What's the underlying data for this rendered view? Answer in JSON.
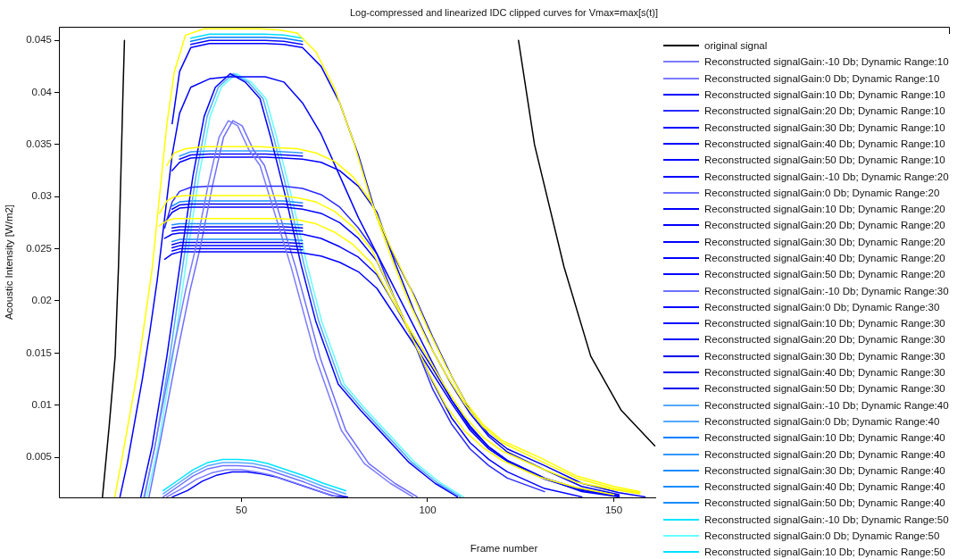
{
  "chart_data": {
    "type": "line",
    "title": "Log-compressed and linearized IDC clipped curves for Vmax=max[s(t)]",
    "xlabel": "Frame number",
    "ylabel": "Acoustic Intensity [W/m2]",
    "xlim": [
      1,
      240
    ],
    "xticks": [
      50,
      100,
      150
    ],
    "ylim": [
      0.00115,
      0.0463
    ],
    "yticks": [
      0.005,
      0.01,
      0.015,
      0.02,
      0.025,
      0.03,
      0.035,
      0.04,
      0.045
    ],
    "grid": false,
    "legend": "right",
    "marker": "none",
    "line_style": "solid",
    "x": [
      17.4,
      19.4,
      21.4,
      23.4,
      25.4,
      27.4,
      29.4,
      31.4,
      33.4,
      36.4,
      41.4,
      46.4,
      51.4,
      56.4,
      61.4,
      66.4,
      71.4,
      76.4,
      81.4,
      86.4,
      91.4,
      96.4,
      101.4,
      106.4,
      111.4,
      116.4,
      121.4,
      131.4,
      141.4,
      151.4,
      158.4
    ],
    "series": [
      {
        "name": "original signal",
        "color": "#000000",
        "x": [
          12.7,
          14.5,
          16.1,
          17,
          18.2,
          18.6,
          70,
          124.4,
          128.7,
          136.6,
          143.8,
          152,
          161
        ],
        "values": [
          0.0012,
          0.008,
          0.0147,
          0.0233,
          0.04,
          0.045,
          null,
          0.045,
          0.035,
          0.0233,
          0.0147,
          0.0095,
          0.0061
        ]
      },
      {
        "color": "#ffff00",
        "x": [
          16,
          18,
          20,
          22,
          24,
          26,
          28,
          30,
          32,
          35,
          40,
          45,
          50,
          55,
          60,
          65,
          70,
          75,
          80,
          85,
          90,
          95,
          100,
          105,
          110,
          115,
          120,
          130,
          140,
          150,
          157
        ],
        "values": [
          0.0012,
          0.005,
          0.009,
          0.013,
          0.018,
          0.023,
          0.03,
          0.037,
          0.042,
          0.0455,
          0.0461,
          0.0461,
          0.0461,
          0.0461,
          0.046,
          0.0457,
          0.0439,
          0.0404,
          0.0354,
          0.0294,
          0.0252,
          0.0215,
          0.0174,
          0.0137,
          0.0104,
          0.0081,
          0.0066,
          0.005,
          0.0032,
          0.0022,
          0.0017
        ]
      },
      {
        "color": "#ffff00",
        "x": [
          30,
          32,
          35,
          40,
          45,
          50,
          55,
          60,
          65,
          70,
          75,
          80,
          85,
          90,
          95,
          100,
          105,
          110,
          115,
          120,
          130,
          140,
          150,
          157
        ],
        "values": [
          0.033,
          0.0342,
          0.0346,
          0.0348,
          0.0348,
          0.0348,
          0.0348,
          0.0347,
          0.0346,
          0.0342,
          0.0334,
          0.0319,
          0.0294,
          0.0244,
          0.0199,
          0.0161,
          0.0129,
          0.0101,
          0.0079,
          0.0064,
          0.0047,
          0.003,
          0.002,
          0.0016
        ]
      },
      {
        "color": "#ffff00",
        "x": [
          28,
          30,
          32,
          35,
          40,
          45,
          50,
          55,
          60,
          65,
          70,
          75,
          80,
          85,
          90,
          95,
          100,
          105,
          110,
          115,
          120,
          130,
          140,
          150
        ],
        "values": [
          0.0284,
          0.0296,
          0.03,
          0.0301,
          0.0301,
          0.0301,
          0.0301,
          0.0301,
          0.0301,
          0.0299,
          0.0295,
          0.0286,
          0.0271,
          0.0249,
          0.0211,
          0.0171,
          0.0133,
          0.0099,
          0.0075,
          0.0059,
          0.0047,
          0.0031,
          0.0021,
          0.0014
        ]
      },
      {
        "color": "#ffff00",
        "x": [
          28,
          30,
          32,
          35,
          40,
          45,
          50,
          55,
          60,
          65,
          70,
          75,
          80,
          85,
          90,
          95,
          100,
          105,
          110,
          115,
          120,
          130,
          140,
          150,
          157
        ],
        "values": [
          0.0272,
          0.0277,
          0.0279,
          0.0279,
          0.0279,
          0.0279,
          0.0279,
          0.0279,
          0.0279,
          0.0278,
          0.0274,
          0.0266,
          0.0254,
          0.0236,
          0.0204,
          0.0174,
          0.0146,
          0.0116,
          0.0089,
          0.0069,
          0.0056,
          0.004,
          0.0026,
          0.0019,
          0.0015
        ]
      },
      {
        "name": "Reconstructed signalGain:-10 Db; Dynamic Range:10",
        "color": "#7b7bff",
        "x": [
          30,
          34,
          38,
          42,
          46,
          50,
          54,
          58,
          63,
          68,
          73,
          76
        ],
        "values": [
          0.0012,
          0.002,
          0.0029,
          0.0035,
          0.0038,
          0.0038,
          0.0036,
          0.0033,
          0.0027,
          0.0021,
          0.0015,
          0.0012
        ]
      },
      {
        "name": "Reconstructed signalGain:0 Db; Dynamic Range:10",
        "color": "#7b7bff",
        "x": [
          24,
          27,
          31.4,
          35,
          37.8,
          41,
          44,
          46.5,
          49,
          52,
          55,
          58,
          63.4,
          70,
          76.8,
          83,
          90,
          96
        ],
        "values": [
          0.0012,
          0.0065,
          0.0147,
          0.021,
          0.0252,
          0.031,
          0.0357,
          0.0373,
          0.0368,
          0.0345,
          0.033,
          0.0295,
          0.0232,
          0.0145,
          0.0076,
          0.0044,
          0.0025,
          0.0012
        ]
      },
      {
        "name": "Reconstructed signalGain:10 Db; Dynamic Range:10",
        "color": "#0000ff",
        "values": [
          0.0012,
          0.0045,
          0.0085,
          0.0125,
          0.017,
          0.022,
          0.028,
          0.034,
          0.038,
          0.0405,
          0.0413,
          0.0415,
          0.0415,
          0.0415,
          0.041,
          0.039,
          0.036,
          0.032,
          0.028,
          0.0245,
          0.021,
          0.0175,
          0.014,
          0.0105,
          0.008,
          0.006,
          0.0047,
          0.003,
          0.0017,
          0.0012,
          null
        ]
      },
      {
        "name": "Reconstructed signalGain:20 Db; Dynamic Range:10",
        "color": "#2a2aff",
        "values": [
          null,
          null,
          null,
          null,
          null,
          null,
          0.027,
          0.0295,
          0.0305,
          0.0309,
          0.031,
          0.031,
          0.031,
          0.031,
          0.031,
          0.0308,
          0.0302,
          0.029,
          0.027,
          0.0245,
          0.02,
          0.016,
          0.0115,
          0.0082,
          0.0058,
          0.0042,
          0.003,
          0.0017,
          null,
          null,
          null
        ]
      },
      {
        "name": "Reconstructed signalGain:30 Db; Dynamic Range:10",
        "color": "#0000ff",
        "values": [
          null,
          null,
          null,
          null,
          null,
          null,
          0.026,
          0.0264,
          0.0265,
          0.0265,
          0.0265,
          0.0265,
          0.0265,
          0.0265,
          0.0265,
          0.0264,
          0.026,
          0.0252,
          0.0242,
          0.0225,
          0.0195,
          0.0163,
          0.0135,
          0.0105,
          0.0078,
          0.006,
          0.0047,
          0.003,
          0.0019,
          0.0013,
          null
        ]
      },
      {
        "name": "Reconstructed signalGain:40 Db; Dynamic Range:10",
        "color": "#0000ff",
        "values": [
          null,
          null,
          null,
          null,
          null,
          null,
          0.024,
          0.0245,
          0.0247,
          0.0247,
          0.0247,
          0.0247,
          0.0247,
          0.0247,
          0.0247,
          0.0246,
          0.0243,
          0.0237,
          0.0228,
          0.0212,
          0.0185,
          0.0158,
          0.013,
          0.0102,
          0.0076,
          0.0058,
          0.0046,
          0.0029,
          0.0018,
          0.0013,
          null
        ]
      },
      {
        "name": "Reconstructed signalGain:50 Db; Dynamic Range:10",
        "color": "#0000ff",
        "values": [
          null,
          null,
          null,
          null,
          null,
          null,
          null,
          0.0248,
          0.025,
          0.025,
          0.025,
          0.025,
          0.025,
          0.025,
          0.025,
          0.0249,
          null,
          null,
          null,
          null,
          null,
          null,
          null,
          null,
          null,
          null,
          null,
          null,
          null,
          null,
          null
        ]
      },
      {
        "name": "Reconstructed signalGain:-10 Db; Dynamic Range:20",
        "color": "#0000ff",
        "x": [
          31.5,
          35.5,
          39.5,
          43.5,
          47.5,
          51.5,
          55.5,
          59.5,
          64.5,
          69.5,
          74.5,
          78.5
        ],
        "values": [
          0.0012,
          0.0018,
          0.0027,
          0.0033,
          0.0036,
          0.0036,
          0.0034,
          0.0031,
          0.0025,
          0.0019,
          0.0013,
          0.0012
        ]
      },
      {
        "name": "Reconstructed signalGain:0 Db; Dynamic Range:20",
        "color": "#6f6fff",
        "x": [
          25.2,
          28.2,
          32.6,
          36.2,
          39,
          42.2,
          45.2,
          47.7,
          50.2,
          53.2,
          56.2,
          59.2,
          64.6,
          71.2,
          78,
          84.2,
          91.2,
          97.2
        ],
        "values": [
          0.0012,
          0.0065,
          0.0147,
          0.021,
          0.0252,
          0.031,
          0.0357,
          0.0373,
          0.0368,
          0.0345,
          0.033,
          0.0295,
          0.0232,
          0.0145,
          0.0076,
          0.0044,
          0.0025,
          0.0012
        ]
      },
      {
        "name": "Reconstructed signalGain:10 Db; Dynamic Range:20",
        "color": "#0000ff",
        "values": [
          null,
          null,
          null,
          null,
          null,
          null,
          null,
          0.037,
          0.042,
          0.0443,
          0.0447,
          0.0447,
          0.0447,
          0.0447,
          0.0446,
          0.0443,
          0.0425,
          0.039,
          0.034,
          0.028,
          0.024,
          0.0205,
          0.0165,
          0.0128,
          0.0095,
          0.0072,
          0.0058,
          0.0042,
          0.0025,
          0.0016,
          0.0012
        ]
      },
      {
        "name": "Reconstructed signalGain:20 Db; Dynamic Range:20",
        "color": "#0000ff",
        "values": [
          null,
          null,
          null,
          null,
          null,
          null,
          null,
          0.0325,
          0.0333,
          0.0337,
          0.0338,
          0.0338,
          0.0338,
          0.0338,
          0.0337,
          0.0336,
          0.0333,
          0.0325,
          0.031,
          0.0285,
          0.0235,
          0.019,
          0.0152,
          0.012,
          0.0092,
          0.007,
          0.0055,
          0.0038,
          0.0022,
          0.0014,
          null
        ]
      },
      {
        "name": "Reconstructed signalGain:30 Db; Dynamic Range:20",
        "color": "#0000ff",
        "values": [
          null,
          null,
          null,
          null,
          null,
          null,
          0.0275,
          0.0285,
          0.0289,
          0.029,
          0.029,
          0.029,
          0.029,
          0.029,
          0.029,
          0.0288,
          0.0284,
          0.0275,
          0.026,
          0.0238,
          0.02,
          0.016,
          0.0122,
          0.0088,
          0.0064,
          0.0048,
          0.0036,
          0.002,
          0.0012,
          null,
          null
        ]
      },
      {
        "name": "Reconstructed signalGain:40 Db; Dynamic Range:20",
        "color": "#0000ff",
        "values": [
          null,
          null,
          null,
          null,
          null,
          null,
          null,
          0.0267,
          0.0268,
          0.0268,
          0.0268,
          0.0268,
          0.0268,
          0.0268,
          0.0268,
          0.0267,
          null,
          null,
          null,
          null,
          null,
          null,
          null,
          null,
          null,
          null,
          null,
          null,
          null,
          null,
          null
        ]
      },
      {
        "name": "Reconstructed signalGain:50 Db; Dynamic Range:20",
        "color": "#0000ff",
        "values": [
          null,
          null,
          null,
          null,
          null,
          null,
          null,
          0.0251,
          0.0253,
          0.0253,
          0.0253,
          0.0253,
          0.0253,
          0.0253,
          0.0253,
          0.0252,
          null,
          null,
          null,
          null,
          null,
          null,
          null,
          null,
          null,
          null,
          null,
          null,
          null,
          null,
          null
        ]
      },
      {
        "name": "Reconstructed signalGain:-10 Db; Dynamic Range:30",
        "color": "#7070ff",
        "x": [
          29,
          33,
          37,
          41,
          45,
          49,
          53,
          57,
          62,
          67,
          72,
          78
        ],
        "values": [
          0.0012,
          0.0022,
          0.0032,
          0.0039,
          0.0042,
          0.0042,
          0.0041,
          0.0038,
          0.0032,
          0.0026,
          0.0019,
          0.0012
        ]
      },
      {
        "name": "Reconstructed signalGain:0 Db; Dynamic Range:30",
        "color": "#0000ff",
        "x": [
          23,
          26,
          30,
          34,
          37,
          40,
          43,
          47,
          51,
          55,
          58,
          62,
          66,
          70,
          76,
          82,
          88,
          95,
          102,
          108
        ],
        "values": [
          0.0012,
          0.006,
          0.0147,
          0.0247,
          0.032,
          0.0377,
          0.0405,
          0.0418,
          0.041,
          0.0394,
          0.0355,
          0.0298,
          0.0235,
          0.018,
          0.012,
          0.0095,
          0.0072,
          0.0045,
          0.0025,
          0.0012
        ]
      },
      {
        "name": "Reconstructed signalGain:10 Db; Dynamic Range:30",
        "color": "#0a0aff",
        "values": [
          null,
          null,
          null,
          null,
          null,
          null,
          null,
          null,
          null,
          0.0446,
          0.045,
          0.045,
          0.045,
          0.045,
          0.0449,
          0.0446,
          null,
          null,
          null,
          null,
          null,
          null,
          null,
          null,
          null,
          null,
          null,
          null,
          null,
          null,
          null
        ]
      },
      {
        "name": "Reconstructed signalGain:20 Db; Dynamic Range:30",
        "color": "#0a0aff",
        "values": [
          null,
          null,
          null,
          null,
          null,
          null,
          null,
          null,
          0.0336,
          0.034,
          0.0341,
          0.0341,
          0.0341,
          0.0341,
          0.034,
          0.0339,
          null,
          null,
          null,
          null,
          null,
          null,
          null,
          null,
          null,
          null,
          null,
          null,
          null,
          null,
          null
        ]
      },
      {
        "name": "Reconstructed signalGain:30 Db; Dynamic Range:30",
        "color": "#0000ee",
        "values": [
          null,
          null,
          null,
          null,
          null,
          null,
          null,
          0.0288,
          0.0292,
          0.0293,
          0.0293,
          0.0293,
          0.0293,
          0.0293,
          0.0293,
          0.0291,
          null,
          null,
          null,
          null,
          null,
          null,
          null,
          null,
          null,
          null,
          null,
          null,
          null,
          null,
          null
        ]
      },
      {
        "name": "Reconstructed signalGain:40 Db; Dynamic Range:30",
        "color": "#0000ee",
        "values": [
          null,
          null,
          null,
          null,
          null,
          null,
          null,
          0.027,
          0.0271,
          0.0271,
          0.0271,
          0.0271,
          0.0271,
          0.0271,
          0.0271,
          0.027,
          null,
          null,
          null,
          null,
          null,
          null,
          null,
          null,
          null,
          null,
          null,
          null,
          null,
          null,
          null
        ]
      },
      {
        "name": "Reconstructed signalGain:50 Db; Dynamic Range:30",
        "color": "#0000ee",
        "values": [
          null,
          null,
          null,
          null,
          null,
          null,
          null,
          0.0254,
          0.0256,
          0.0256,
          0.0256,
          0.0256,
          0.0256,
          0.0256,
          0.0256,
          0.0255,
          null,
          null,
          null,
          null,
          null,
          null,
          null,
          null,
          null,
          null,
          null,
          null,
          null,
          null,
          null
        ]
      },
      {
        "name": "Reconstructed signalGain:-10 Db; Dynamic Range:40",
        "color": "#55aaff",
        "x": [
          29,
          33,
          37,
          41,
          45,
          49,
          53,
          57,
          62,
          67,
          72,
          78
        ],
        "values": [
          0.0015,
          0.0025,
          0.0035,
          0.0042,
          0.0045,
          0.0045,
          0.0044,
          0.0041,
          0.0035,
          0.0029,
          0.0022,
          0.0015
        ]
      },
      {
        "name": "Reconstructed signalGain:0 Db; Dynamic Range:40",
        "color": "#55aaff",
        "x": [
          23.8,
          26.8,
          30.8,
          34.8,
          37.8,
          40.8,
          43.8,
          47.8,
          51.8,
          55.8,
          58.8,
          62.8,
          66.8,
          70.8,
          76.8,
          82.8,
          88.8,
          95.8,
          102.8,
          108.8
        ],
        "values": [
          0.0012,
          0.006,
          0.0147,
          0.0247,
          0.032,
          0.0377,
          0.0405,
          0.0418,
          0.041,
          0.0394,
          0.0355,
          0.0298,
          0.0235,
          0.018,
          0.012,
          0.0095,
          0.0072,
          0.0045,
          0.0025,
          0.0012
        ]
      },
      {
        "name": "Reconstructed signalGain:10 Db; Dynamic Range:40",
        "color": "#0080ff",
        "values": [
          null,
          null,
          null,
          null,
          null,
          null,
          null,
          null,
          null,
          0.0449,
          0.0453,
          0.0453,
          0.0453,
          0.0453,
          0.0452,
          0.0449,
          null,
          null,
          null,
          null,
          null,
          null,
          null,
          null,
          null,
          null,
          null,
          null,
          null,
          null,
          null
        ]
      },
      {
        "name": "Reconstructed signalGain:20 Db; Dynamic Range:40",
        "color": "#3399ff",
        "values": [
          null,
          null,
          null,
          null,
          null,
          null,
          null,
          null,
          0.0339,
          0.0343,
          0.0344,
          0.0344,
          0.0344,
          0.0344,
          0.0343,
          0.0342,
          null,
          null,
          null,
          null,
          null,
          null,
          null,
          null,
          null,
          null,
          null,
          null,
          null,
          null,
          null
        ]
      },
      {
        "name": "Reconstructed signalGain:30 Db; Dynamic Range:40",
        "color": "#1a8cff",
        "values": [
          null,
          null,
          null,
          null,
          null,
          null,
          null,
          0.0291,
          0.0295,
          0.0296,
          0.0296,
          0.0296,
          0.0296,
          0.0296,
          0.0296,
          0.0294,
          null,
          null,
          null,
          null,
          null,
          null,
          null,
          null,
          null,
          null,
          null,
          null,
          null,
          null,
          null
        ]
      },
      {
        "name": "Reconstructed signalGain:40 Db; Dynamic Range:40",
        "color": "#1a8cff",
        "values": [
          null,
          null,
          null,
          null,
          null,
          null,
          null,
          0.0273,
          0.0274,
          0.0274,
          0.0274,
          0.0274,
          0.0274,
          0.0274,
          0.0274,
          0.0273,
          null,
          null,
          null,
          null,
          null,
          null,
          null,
          null,
          null,
          null,
          null,
          null,
          null,
          null,
          null
        ]
      },
      {
        "name": "Reconstructed signalGain:50 Db; Dynamic Range:40",
        "color": "#1a8cff",
        "values": [
          null,
          null,
          null,
          null,
          null,
          null,
          null,
          0.0257,
          0.0259,
          0.0259,
          0.0259,
          0.0259,
          0.0259,
          0.0259,
          0.0259,
          0.0258,
          null,
          null,
          null,
          null,
          null,
          null,
          null,
          null,
          null,
          null,
          null,
          null,
          null,
          null,
          null
        ]
      },
      {
        "name": "Reconstructed signalGain:-10 Db; Dynamic Range:50",
        "color": "#00e5ff",
        "x": [
          29,
          33,
          37,
          41,
          45,
          49,
          53,
          57,
          62,
          67,
          72,
          78
        ],
        "values": [
          0.0018,
          0.0028,
          0.0038,
          0.0045,
          0.0048,
          0.0048,
          0.0047,
          0.0044,
          0.0038,
          0.0032,
          0.0025,
          0.0018
        ]
      },
      {
        "name": "Reconstructed signalGain:0 Db; Dynamic Range:50",
        "color": "#66ffff",
        "x": [
          24.6,
          27.6,
          31.6,
          35.6,
          38.6,
          41.6,
          44.6,
          48.6,
          52.6,
          56.6,
          59.6,
          63.6,
          67.6,
          71.6,
          77.6,
          83.6,
          89.6,
          96.6,
          103.6,
          109.6
        ],
        "values": [
          0.0012,
          0.006,
          0.0147,
          0.0247,
          0.032,
          0.0377,
          0.0405,
          0.0418,
          0.041,
          0.0394,
          0.0355,
          0.0298,
          0.0235,
          0.018,
          0.012,
          0.0095,
          0.0072,
          0.0045,
          0.0025,
          0.0012
        ]
      },
      {
        "name": "Reconstructed signalGain:10 Db; Dynamic Range:50",
        "color": "#00e0ff",
        "values": [
          null,
          null,
          null,
          null,
          null,
          null,
          null,
          null,
          null,
          0.0452,
          0.0456,
          0.0456,
          0.0456,
          0.0456,
          0.0455,
          0.0452,
          null,
          null,
          null,
          null,
          null,
          null,
          null,
          null,
          null,
          null,
          null,
          null,
          null,
          null,
          null
        ]
      }
    ]
  }
}
